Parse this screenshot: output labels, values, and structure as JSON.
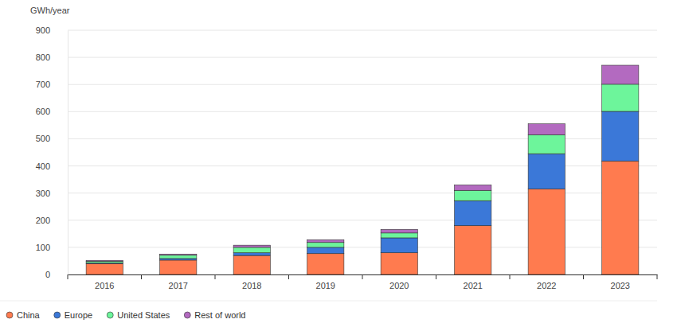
{
  "chart_data": {
    "type": "bar",
    "stacked": true,
    "y_label": "GWh/year",
    "categories": [
      "2016",
      "2017",
      "2018",
      "2019",
      "2020",
      "2021",
      "2022",
      "2023"
    ],
    "series": [
      {
        "name": "China",
        "color": "#ff7b4f",
        "values": [
          40,
          53,
          70,
          77,
          80,
          180,
          315,
          418
        ]
      },
      {
        "name": "Europe",
        "color": "#3b78d8",
        "values": [
          3,
          6,
          10,
          23,
          55,
          92,
          130,
          183
        ]
      },
      {
        "name": "United States",
        "color": "#6df59b",
        "values": [
          6,
          12,
          20,
          18,
          18,
          38,
          70,
          100
        ]
      },
      {
        "name": "Rest of world",
        "color": "#b36ac0",
        "values": [
          3,
          4,
          8,
          10,
          13,
          20,
          40,
          70
        ]
      }
    ],
    "ylim": [
      0,
      900
    ],
    "yticks": [
      0,
      100,
      200,
      300,
      400,
      500,
      600,
      700,
      800,
      900
    ],
    "grid": true,
    "legend": "bottom"
  }
}
